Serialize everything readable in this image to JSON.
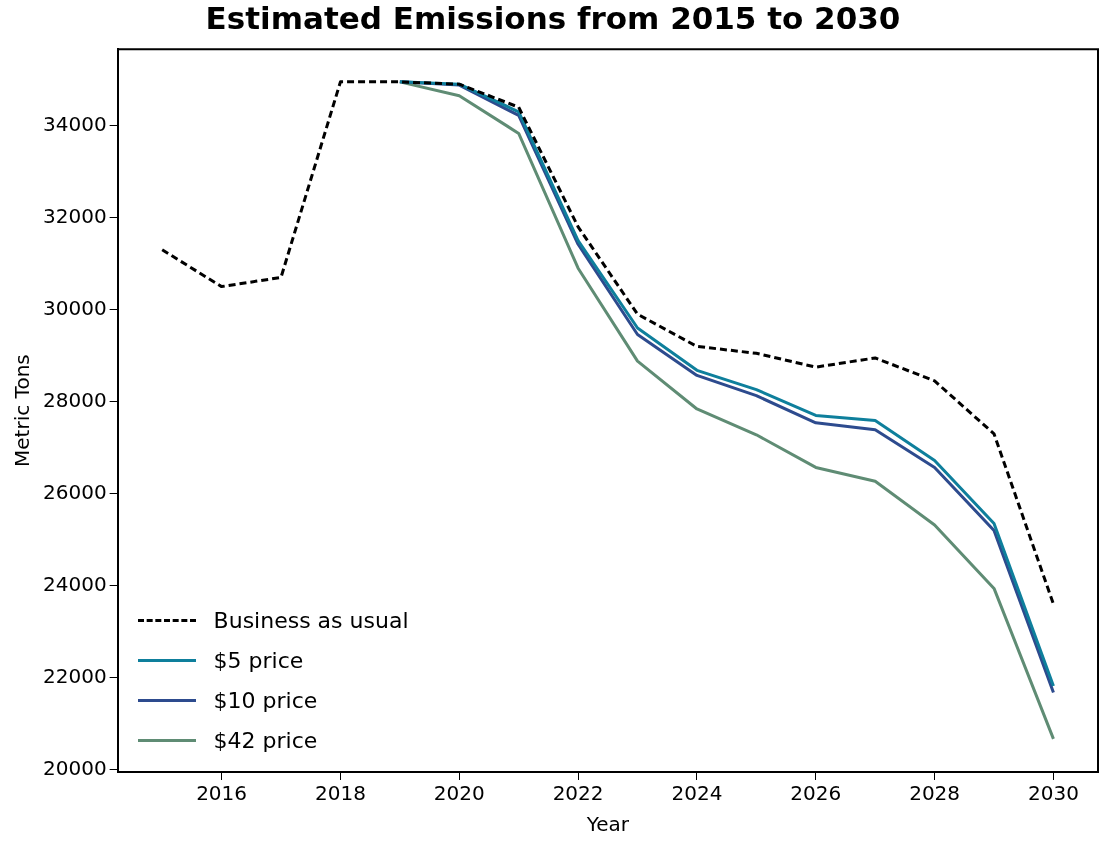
{
  "chart_data": {
    "type": "line",
    "title": "Estimated Emissions from 2015 to 2030",
    "xlabel": "Year",
    "ylabel": "Metric Tons",
    "x": [
      2015,
      2016,
      2017,
      2018,
      2019,
      2020,
      2021,
      2022,
      2023,
      2024,
      2025,
      2026,
      2027,
      2028,
      2029,
      2030
    ],
    "series": [
      {
        "name": "Business as usual",
        "color": "#000000",
        "line_style": "dashed",
        "values": [
          31300,
          30500,
          30700,
          34950,
          34950,
          34900,
          34400,
          31800,
          29900,
          29200,
          29050,
          28750,
          28950,
          28450,
          27300,
          23600
        ]
      },
      {
        "name": "$5 price",
        "color": "#0e7f9c",
        "values": [
          null,
          null,
          null,
          null,
          34950,
          34900,
          34300,
          31500,
          29600,
          28680,
          28260,
          27700,
          27590,
          26720,
          25350,
          21820
        ]
      },
      {
        "name": "$10 price",
        "color": "#2d4b8e",
        "values": [
          null,
          null,
          null,
          null,
          34950,
          34880,
          34220,
          31420,
          29460,
          28570,
          28130,
          27540,
          27390,
          26570,
          25200,
          21680
        ]
      },
      {
        "name": "$42 price",
        "color": "#5f8c74",
        "values": [
          null,
          null,
          null,
          null,
          34950,
          34650,
          33830,
          30900,
          28880,
          27840,
          27280,
          26570,
          26270,
          25320,
          23940,
          20670
        ]
      }
    ],
    "xlim": [
      2014.25,
      2030.75
    ],
    "xticks": [
      2016,
      2018,
      2020,
      2022,
      2024,
      2026,
      2028,
      2030
    ],
    "ylim": [
      19950,
      35660
    ],
    "yticks": [
      20000,
      22000,
      24000,
      26000,
      28000,
      30000,
      32000,
      34000
    ],
    "grid": false,
    "legend": "bottom left"
  }
}
